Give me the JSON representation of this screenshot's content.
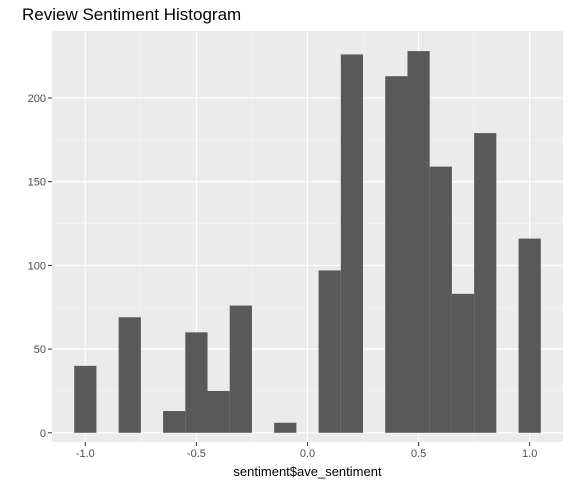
{
  "chart_data": {
    "type": "bar",
    "title": "Review Sentiment Histogram",
    "xlabel": "sentiment$ave_sentiment",
    "ylabel": "",
    "xlim": [
      -1.15,
      1.15
    ],
    "ylim": [
      -5.5,
      240
    ],
    "x_ticks": [
      -1.0,
      -0.5,
      0.0,
      0.5,
      1.0
    ],
    "x_tick_labels": [
      "-1.0",
      "-0.5",
      "0.0",
      "0.5",
      "1.0"
    ],
    "y_ticks": [
      0,
      50,
      100,
      150,
      200
    ],
    "y_tick_labels": [
      "0",
      "50",
      "100",
      "150",
      "200"
    ],
    "bin_width": 0.1,
    "bins": [
      {
        "x0": -1.05,
        "x1": -0.95,
        "count": 40
      },
      {
        "x0": -0.95,
        "x1": -0.85,
        "count": 0
      },
      {
        "x0": -0.85,
        "x1": -0.75,
        "count": 69
      },
      {
        "x0": -0.75,
        "x1": -0.65,
        "count": 0
      },
      {
        "x0": -0.65,
        "x1": -0.55,
        "count": 13
      },
      {
        "x0": -0.55,
        "x1": -0.45,
        "count": 60
      },
      {
        "x0": -0.45,
        "x1": -0.35,
        "count": 25
      },
      {
        "x0": -0.35,
        "x1": -0.25,
        "count": 76
      },
      {
        "x0": -0.25,
        "x1": -0.15,
        "count": 0
      },
      {
        "x0": -0.15,
        "x1": -0.05,
        "count": 6
      },
      {
        "x0": -0.05,
        "x1": 0.05,
        "count": 0
      },
      {
        "x0": 0.05,
        "x1": 0.15,
        "count": 97
      },
      {
        "x0": 0.15,
        "x1": 0.25,
        "count": 226
      },
      {
        "x0": 0.25,
        "x1": 0.35,
        "count": 0
      },
      {
        "x0": 0.35,
        "x1": 0.45,
        "count": 213
      },
      {
        "x0": 0.45,
        "x1": 0.55,
        "count": 228
      },
      {
        "x0": 0.55,
        "x1": 0.65,
        "count": 159
      },
      {
        "x0": 0.65,
        "x1": 0.75,
        "count": 83
      },
      {
        "x0": 0.75,
        "x1": 0.85,
        "count": 179
      },
      {
        "x0": 0.85,
        "x1": 0.95,
        "count": 0
      },
      {
        "x0": 0.95,
        "x1": 1.05,
        "count": 116
      }
    ],
    "grid": true,
    "colors": {
      "panel_background": "#ebebeb",
      "grid_major": "#ffffff",
      "grid_minor": "#f5f5f5",
      "bar_fill": "#595959",
      "tick_text": "#4d4d4d",
      "title_text": "#000000"
    }
  }
}
